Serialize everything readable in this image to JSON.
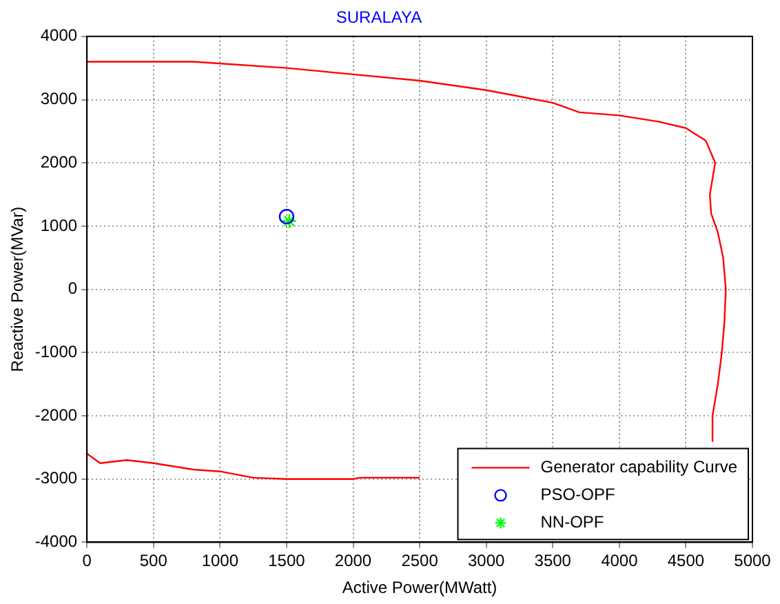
{
  "chart_data": {
    "type": "line",
    "title": "SURALAYA",
    "xlabel": "Active Power(MWatt)",
    "ylabel": "Reactive Power(MVar)",
    "xlim": [
      0,
      5000
    ],
    "xticks": [
      0,
      500,
      1000,
      1500,
      2000,
      2500,
      3000,
      3500,
      4000,
      4500,
      5000
    ],
    "ylim": [
      -4000,
      4000
    ],
    "yticks": [
      -4000,
      -3000,
      -2000,
      -1000,
      0,
      1000,
      2000,
      3000,
      4000
    ],
    "grid": true,
    "legend": "bottom right",
    "series": [
      {
        "name": "Generator capability Curve",
        "type": "line",
        "color": "#ff0000",
        "marker": "none",
        "line_style": "solid",
        "x": [
          0,
          800,
          1500,
          2000,
          2500,
          3000,
          3500,
          3700,
          4000,
          4300,
          4500,
          4650,
          4700,
          4720,
          4680,
          4690,
          4740,
          4780,
          4800,
          4790,
          4770,
          4740,
          4700,
          4700,
          null,
          2500,
          2050,
          2000,
          1500,
          1250,
          1000,
          800,
          500,
          300,
          100,
          0
        ],
        "values": [
          3600,
          3600,
          3500,
          3400,
          3300,
          3150,
          2950,
          2800,
          2750,
          2650,
          2550,
          2350,
          2100,
          2000,
          1500,
          1200,
          900,
          500,
          0,
          -500,
          -1000,
          -1500,
          -2000,
          -2400,
          null,
          -2980,
          -2980,
          -3000,
          -3000,
          -2980,
          -2880,
          -2850,
          -2750,
          -2700,
          -2750,
          -2600
        ]
      },
      {
        "name": "PSO-OPF",
        "type": "scatter",
        "color": "#0000ff",
        "marker": "circle",
        "x": [
          1500
        ],
        "values": [
          1150
        ]
      },
      {
        "name": "NN-OPF",
        "type": "scatter",
        "color": "#00ff00",
        "marker": "cross",
        "x": [
          1520
        ],
        "values": [
          1080
        ]
      }
    ]
  }
}
